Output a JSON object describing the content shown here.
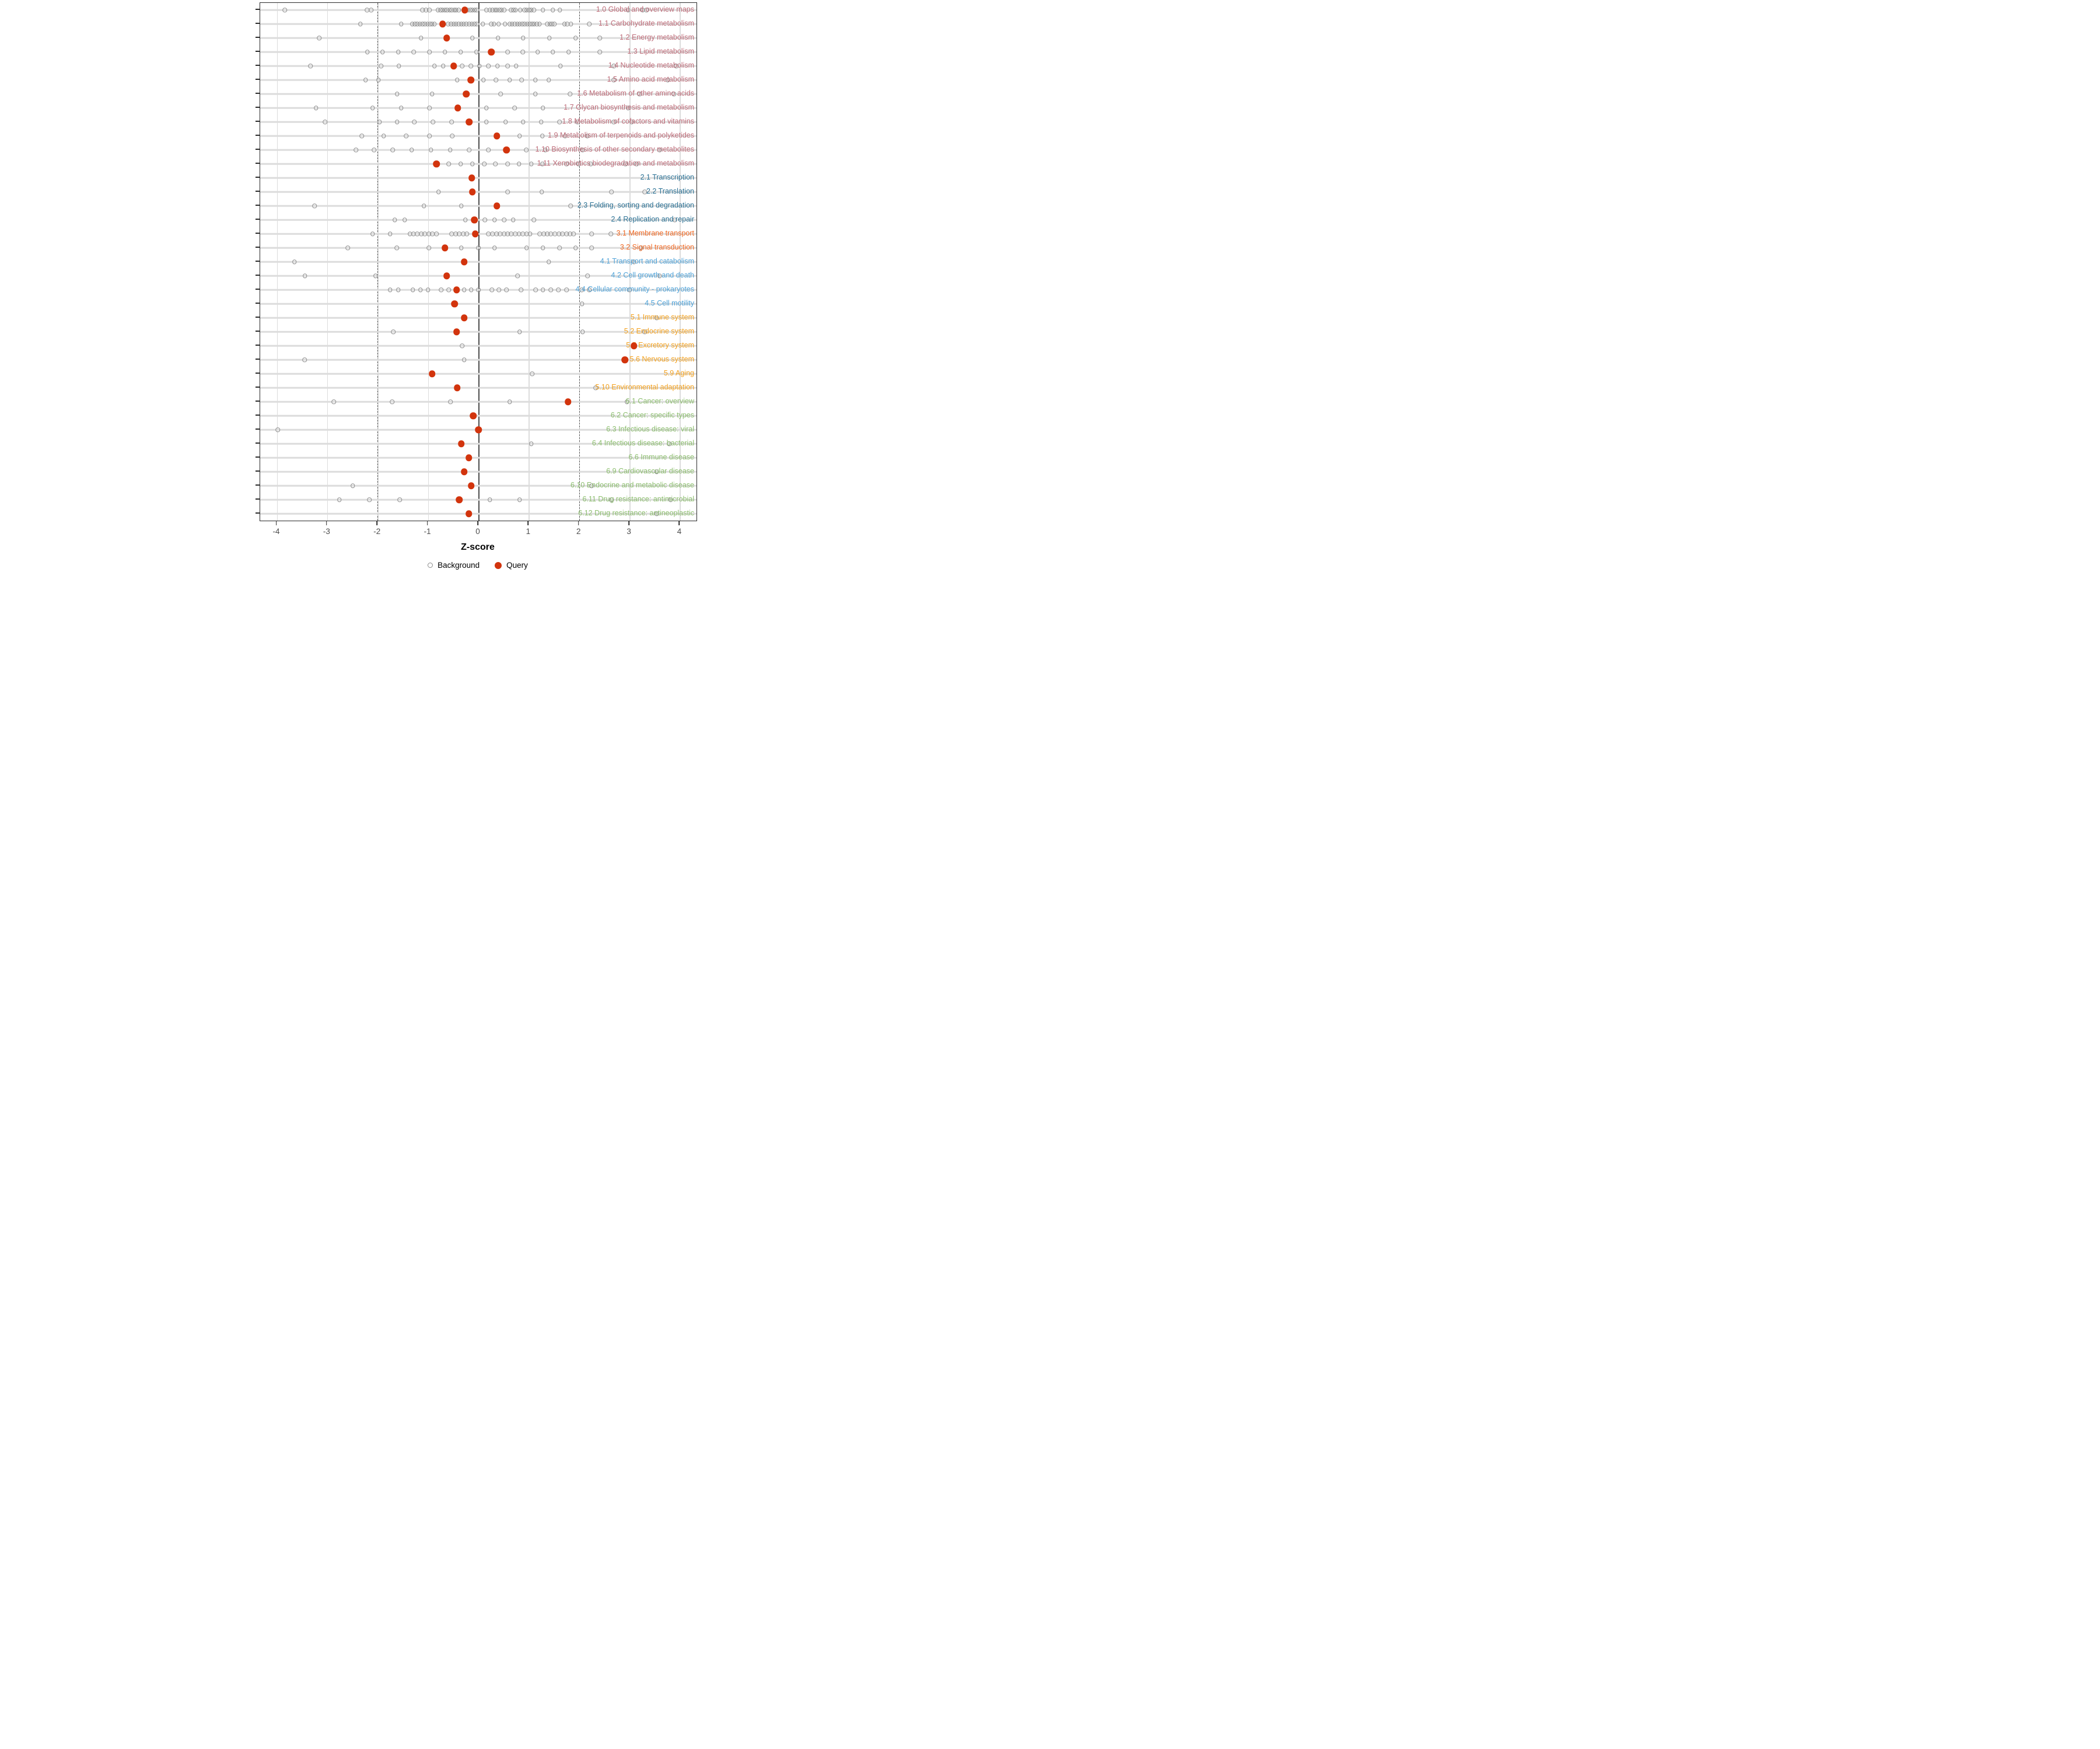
{
  "colors": {
    "query_red": "#d2340d",
    "background_gray": "#8c8c8c",
    "gridline": "#dcdcdc",
    "zero_line": "#4d4d4d",
    "dashed_guide": "#5a5a5a",
    "panel_border": "#2b2b2b",
    "tick_text": "#4d4d4d",
    "group_colors": {
      "metabolism": "#be6c79",
      "genetic_information_processing": "#2c7295",
      "environmental_information_processing": "#f16822",
      "cellular_processes": "#4fa3d9",
      "organismal_systems": "#f4a11d",
      "human_diseases": "#8cbe6e"
    }
  },
  "chart_data": {
    "type": "scatter",
    "title": "",
    "xlabel": "Z-score",
    "ylabel": "",
    "x_ticks": [
      -4,
      -3,
      -2,
      -1,
      0,
      1,
      2,
      3,
      4
    ],
    "xlim": [
      -4.33,
      4.33
    ],
    "guides": {
      "zero_line": 0,
      "dashed_lines": [
        -2,
        2
      ]
    },
    "legend": [
      {
        "label": "Background",
        "marker": "open-circle"
      },
      {
        "label": "Query",
        "marker": "filled-circle"
      }
    ],
    "legend_position": "bottom-center",
    "grid": "on",
    "rows": [
      {
        "label": "1.0 Global and overview maps",
        "group": "metabolism",
        "query": -0.27,
        "background": [
          -3.84,
          -2.21,
          -2.13,
          -1.11,
          -1.04,
          -0.97,
          -0.8,
          -0.75,
          -0.71,
          -0.66,
          -0.62,
          -0.57,
          -0.53,
          -0.48,
          -0.44,
          -0.39,
          -0.21,
          -0.16,
          -0.12,
          -0.07,
          -0.03,
          0.16,
          0.23,
          0.28,
          0.33,
          0.37,
          0.42,
          0.46,
          0.51,
          0.65,
          0.7,
          0.74,
          0.83,
          0.92,
          0.96,
          1.01,
          1.05,
          1.1,
          1.28,
          1.48,
          1.62,
          2.97,
          3.26,
          3.34
        ]
      },
      {
        "label": "1.1 Carbohydrate metabolism",
        "group": "metabolism",
        "query": -0.71,
        "background": [
          -2.34,
          -1.53,
          -1.31,
          -1.26,
          -1.21,
          -1.16,
          -1.11,
          -1.06,
          -1.01,
          -0.96,
          -0.92,
          -0.87,
          -0.6,
          -0.54,
          -0.49,
          -0.44,
          -0.39,
          -0.34,
          -0.29,
          -0.24,
          -0.18,
          -0.13,
          -0.08,
          -0.03,
          0.09,
          0.26,
          0.31,
          0.4,
          0.53,
          0.62,
          0.67,
          0.72,
          0.77,
          0.82,
          0.87,
          0.92,
          0.97,
          1.02,
          1.07,
          1.11,
          1.16,
          1.21,
          1.37,
          1.42,
          1.46,
          1.51,
          1.71,
          1.76,
          1.84,
          2.2
        ]
      },
      {
        "label": "1.2 Energy metabolism",
        "group": "metabolism",
        "query": -0.63,
        "background": [
          -3.16,
          -1.14,
          -0.12,
          0.39,
          0.89,
          1.41,
          1.93,
          2.41
        ]
      },
      {
        "label": "1.3 Lipid metabolism",
        "group": "metabolism",
        "query": 0.26,
        "background": [
          -2.2,
          -1.9,
          -1.59,
          -1.28,
          -0.97,
          -0.66,
          -0.35,
          -0.04,
          0.58,
          0.88,
          1.18,
          1.48,
          1.79,
          2.41
        ]
      },
      {
        "label": "1.4 Nucleotide metabolism",
        "group": "metabolism",
        "query": -0.49,
        "background": [
          -3.33,
          -1.93,
          -1.58,
          -0.87,
          -0.7,
          -0.32,
          -0.15,
          0.02,
          0.2,
          0.38,
          0.58,
          0.75,
          1.63,
          2.69,
          3.93
        ]
      },
      {
        "label": "1.5 Amino acid metabolism",
        "group": "metabolism",
        "query": -0.15,
        "background": [
          -2.24,
          -1.98,
          -0.42,
          0.1,
          0.35,
          0.62,
          0.86,
          1.13,
          1.4,
          2.69,
          3.76
        ]
      },
      {
        "label": "1.6 Metabolism of other amino acids",
        "group": "metabolism",
        "query": -0.24,
        "background": [
          -1.61,
          -0.92,
          0.44,
          1.13,
          1.82,
          3.2,
          3.88
        ]
      },
      {
        "label": "1.7 Glycan biosynthesis and metabolism",
        "group": "metabolism",
        "query": -0.41,
        "background": [
          -3.22,
          -2.1,
          -1.53,
          -0.97,
          0.16,
          0.72,
          1.28,
          2.97
        ]
      },
      {
        "label": "1.8 Metabolism of cofactors and vitamins",
        "group": "metabolism",
        "query": -0.18,
        "background": [
          -3.04,
          -1.96,
          -1.61,
          -1.27,
          -0.9,
          -0.53,
          0.16,
          0.54,
          0.89,
          1.25,
          1.61,
          1.97,
          2.69,
          3.04
        ]
      },
      {
        "label": "1.9 Metabolism of terpenoids and polyketides",
        "group": "metabolism",
        "query": 0.37,
        "background": [
          -2.31,
          -1.88,
          -1.43,
          -0.97,
          -0.52,
          0.82,
          1.27,
          1.72,
          2.16
        ]
      },
      {
        "label": "1.10 Biosynthesis of other secondary metabolites",
        "group": "metabolism",
        "query": 0.56,
        "background": [
          -2.43,
          -2.07,
          -1.7,
          -1.32,
          -0.94,
          -0.56,
          -0.18,
          0.2,
          0.95,
          1.33,
          2.07,
          3.6
        ]
      },
      {
        "label": "1.11 Xenobiotics biodegradation and metabolism",
        "group": "metabolism",
        "query": -0.83,
        "background": [
          -0.59,
          -0.35,
          -0.12,
          0.12,
          0.34,
          0.58,
          0.81,
          1.05,
          1.27,
          1.75,
          1.99,
          2.23,
          2.92,
          3.14
        ]
      },
      {
        "label": "2.1 Transcription",
        "group": "genetic_information_processing",
        "query": -0.13,
        "background": []
      },
      {
        "label": "2.2 Translation",
        "group": "genetic_information_processing",
        "query": -0.12,
        "background": [
          -0.79,
          0.58,
          1.26,
          2.64,
          3.3
        ]
      },
      {
        "label": "2.3 Folding, sorting and degradation",
        "group": "genetic_information_processing",
        "query": 0.37,
        "background": [
          -3.25,
          -1.08,
          -0.34,
          1.83
        ]
      },
      {
        "label": "2.4 Replication and repair",
        "group": "genetic_information_processing",
        "query": -0.08,
        "background": [
          -1.66,
          -1.46,
          -0.26,
          0.13,
          0.32,
          0.51,
          0.69,
          1.1,
          3.9
        ]
      },
      {
        "label": "3.1 Membrane transport",
        "group": "environmental_information_processing",
        "query": -0.06,
        "background": [
          -2.1,
          -1.75,
          -1.36,
          -1.29,
          -1.21,
          -1.13,
          -1.06,
          -0.98,
          -0.91,
          -0.83,
          -0.53,
          -0.45,
          -0.38,
          -0.3,
          -0.23,
          0.2,
          0.28,
          0.36,
          0.43,
          0.51,
          0.58,
          0.65,
          0.73,
          0.81,
          0.88,
          0.96,
          1.03,
          1.22,
          1.3,
          1.37,
          1.44,
          1.52,
          1.6,
          1.67,
          1.75,
          1.82,
          1.89,
          2.25,
          2.63
        ]
      },
      {
        "label": "3.2 Signal transduction",
        "group": "environmental_information_processing",
        "query": -0.66,
        "background": [
          -2.59,
          -1.62,
          -0.98,
          -0.34,
          0.0,
          0.32,
          0.96,
          1.28,
          1.61,
          1.93,
          2.25,
          3.23
        ]
      },
      {
        "label": "4.1 Transport and catabolism",
        "group": "cellular_processes",
        "query": -0.28,
        "background": [
          -3.65,
          1.4,
          3.09
        ]
      },
      {
        "label": "4.2 Cell growth and death",
        "group": "cellular_processes",
        "query": -0.63,
        "background": [
          -3.44,
          -2.04,
          0.78,
          2.17,
          3.6
        ]
      },
      {
        "label": "4.4 Cellular community - prokaryotes",
        "group": "cellular_processes",
        "query": -0.43,
        "background": [
          -1.75,
          -1.59,
          -1.3,
          -1.15,
          -1.0,
          -0.74,
          -0.59,
          -0.28,
          -0.14,
          0.0,
          0.27,
          0.41,
          0.56,
          0.85,
          1.14,
          1.28,
          1.44,
          1.59,
          1.75,
          2.05,
          2.2,
          3.0
        ]
      },
      {
        "label": "4.5 Cell motility",
        "group": "cellular_processes",
        "query": -0.47,
        "background": [
          2.06
        ]
      },
      {
        "label": "5.1 Immune system",
        "group": "organismal_systems",
        "query": -0.28,
        "background": [
          3.54
        ]
      },
      {
        "label": "5.2 Endocrine system",
        "group": "organismal_systems",
        "query": -0.43,
        "background": [
          -1.69,
          0.82,
          2.07,
          3.3
        ]
      },
      {
        "label": "5.5 Excretory system",
        "group": "organismal_systems",
        "query": 3.09,
        "background": [
          -0.32
        ]
      },
      {
        "label": "5.6 Nervous system",
        "group": "organismal_systems",
        "query": 2.91,
        "background": [
          -3.45,
          -0.28
        ]
      },
      {
        "label": "5.9 Aging",
        "group": "organismal_systems",
        "query": -0.92,
        "background": [
          1.07
        ]
      },
      {
        "label": "5.10 Environmental adaptation",
        "group": "organismal_systems",
        "query": -0.42,
        "background": [
          2.33
        ]
      },
      {
        "label": "6.1 Cancer: overview",
        "group": "human_diseases",
        "query": 1.78,
        "background": [
          -2.87,
          -1.71,
          -0.55,
          0.62,
          2.95
        ]
      },
      {
        "label": "6.2 Cancer: specific types",
        "group": "human_diseases",
        "query": -0.1,
        "background": []
      },
      {
        "label": "6.3 Infectious disease: viral",
        "group": "human_diseases",
        "query": 0.0,
        "background": [
          -3.98
        ]
      },
      {
        "label": "6.4 Infectious disease: bacterial",
        "group": "human_diseases",
        "query": -0.34,
        "background": [
          1.05,
          3.79
        ]
      },
      {
        "label": "6.6 Immune disease",
        "group": "human_diseases",
        "query": -0.19,
        "background": []
      },
      {
        "label": "6.9 Cardiovascular disease",
        "group": "human_diseases",
        "query": -0.28,
        "background": [
          3.54
        ]
      },
      {
        "label": "6.10 Endocrine and metabolic disease",
        "group": "human_diseases",
        "query": -0.14,
        "background": [
          -2.49,
          2.25
        ]
      },
      {
        "label": "6.11 Drug resistance: antimicrobial",
        "group": "human_diseases",
        "query": -0.38,
        "background": [
          -2.76,
          -2.16,
          -1.56,
          0.23,
          0.82,
          2.64,
          3.82
        ]
      },
      {
        "label": "6.12 Drug resistance: antineoplastic",
        "group": "human_diseases",
        "query": -0.19,
        "background": [
          3.54
        ]
      }
    ]
  }
}
